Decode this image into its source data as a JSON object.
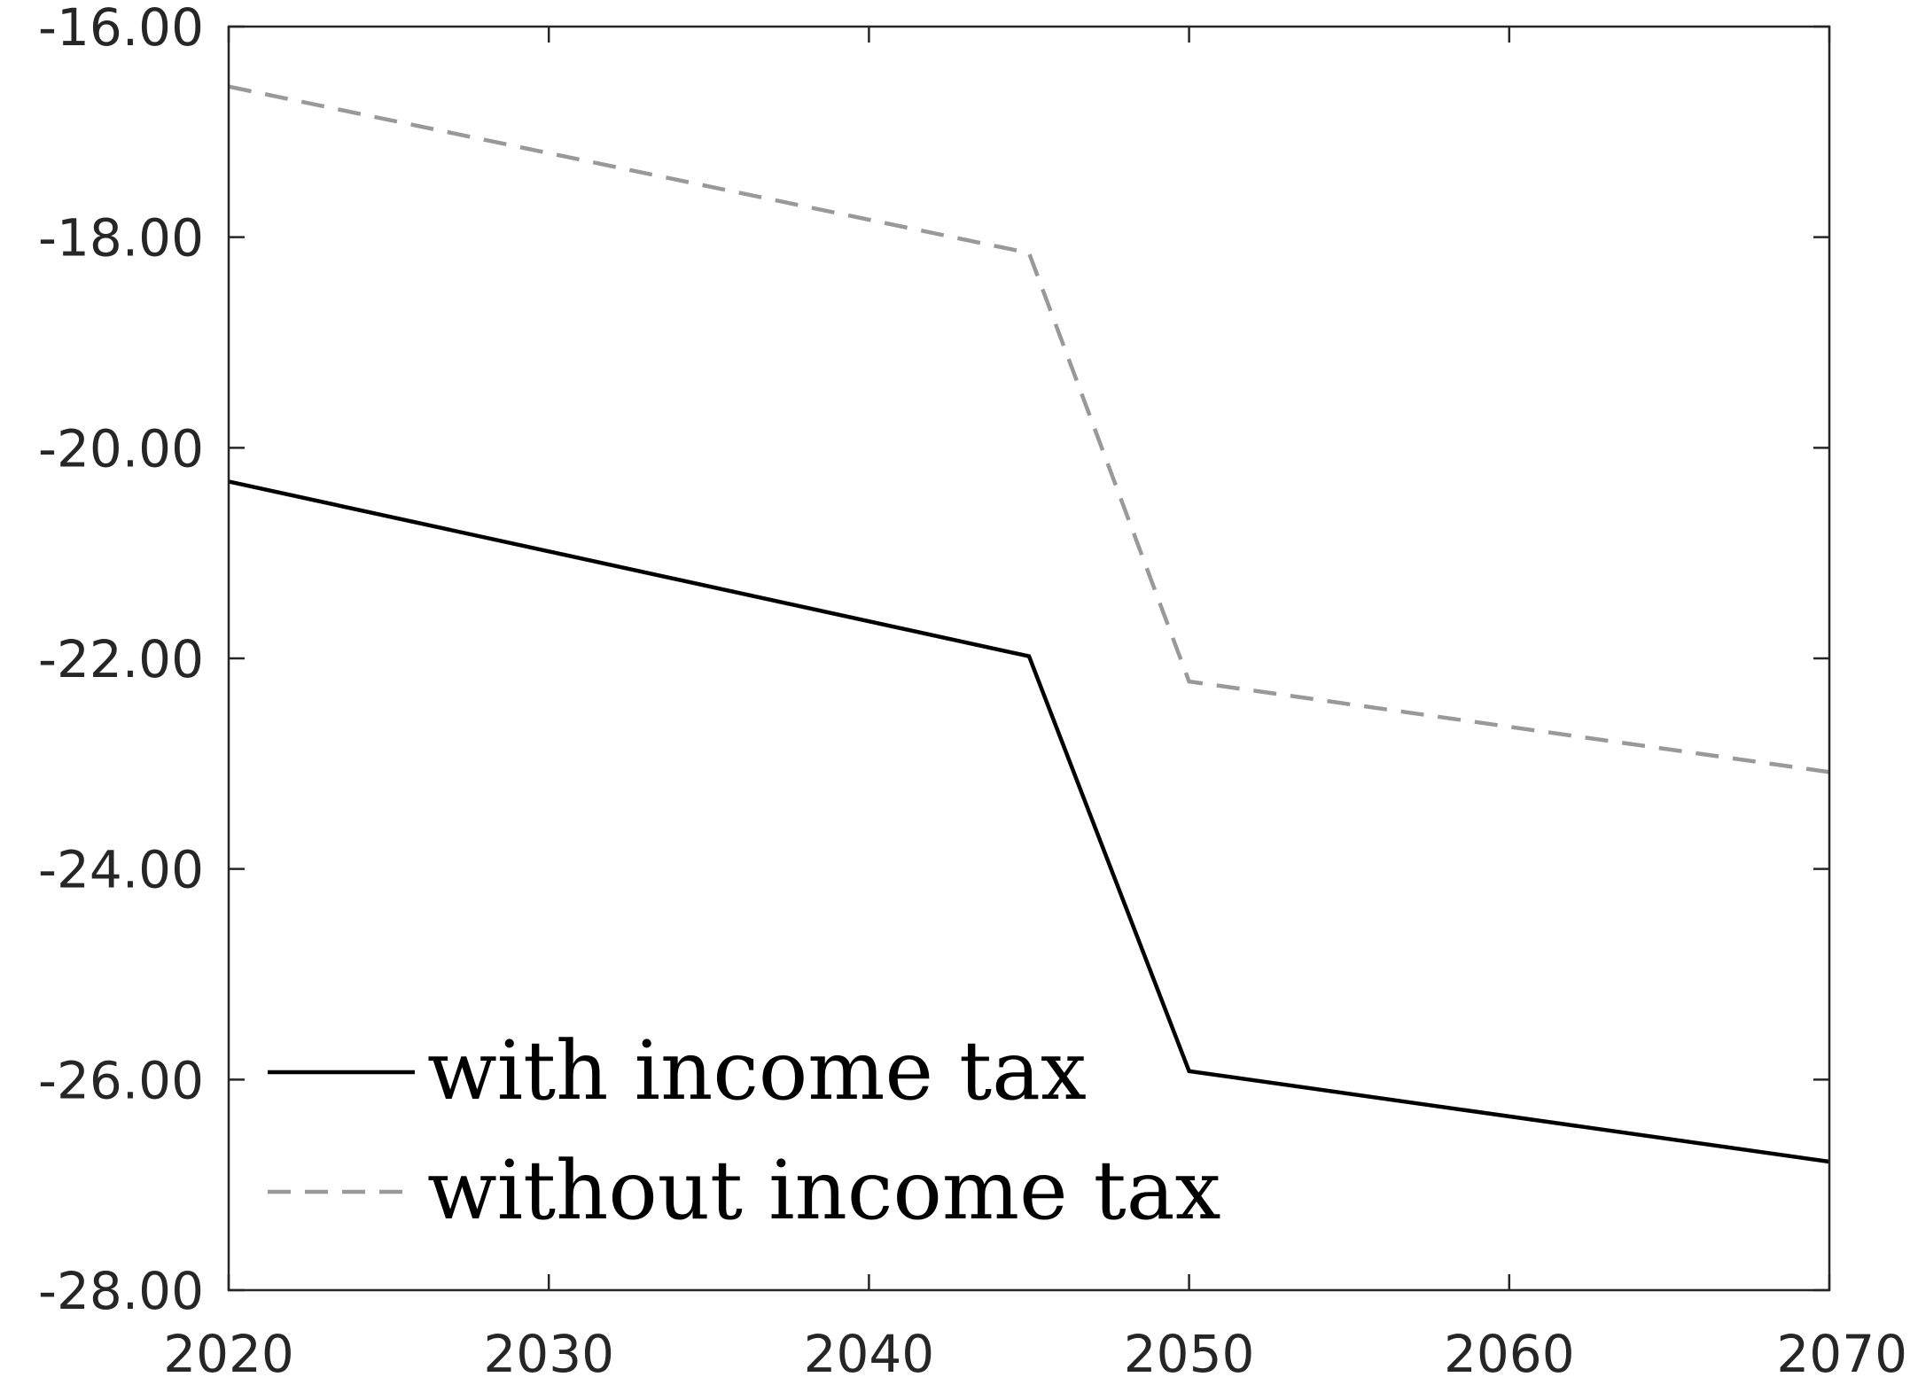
{
  "chart_data": {
    "type": "line",
    "title": "",
    "xlabel": "",
    "ylabel": "",
    "xlim": [
      2020,
      2070
    ],
    "ylim": [
      -28,
      -16
    ],
    "xticks": [
      2020,
      2030,
      2040,
      2050,
      2060,
      2070
    ],
    "yticks": [
      -16,
      -18,
      -20,
      -22,
      -24,
      -26,
      -28
    ],
    "xtick_labels": [
      "2020",
      "2030",
      "2040",
      "2050",
      "2060",
      "2070"
    ],
    "ytick_labels": [
      "-16.00",
      "-18.00",
      "-20.00",
      "-22.00",
      "-24.00",
      "-26.00",
      "-28.00"
    ],
    "grid": false,
    "legend_position": "bottom-left",
    "series": [
      {
        "name": "with income tax",
        "x": [
          2020,
          2045,
          2050,
          2070
        ],
        "y": [
          -20.32,
          -21.98,
          -25.92,
          -26.78
        ],
        "color": "#000000",
        "style": "solid"
      },
      {
        "name": "without income tax",
        "x": [
          2020,
          2045,
          2050,
          2070
        ],
        "y": [
          -16.57,
          -18.15,
          -22.22,
          -23.08
        ],
        "color": "#999999",
        "style": "dashed"
      }
    ]
  }
}
